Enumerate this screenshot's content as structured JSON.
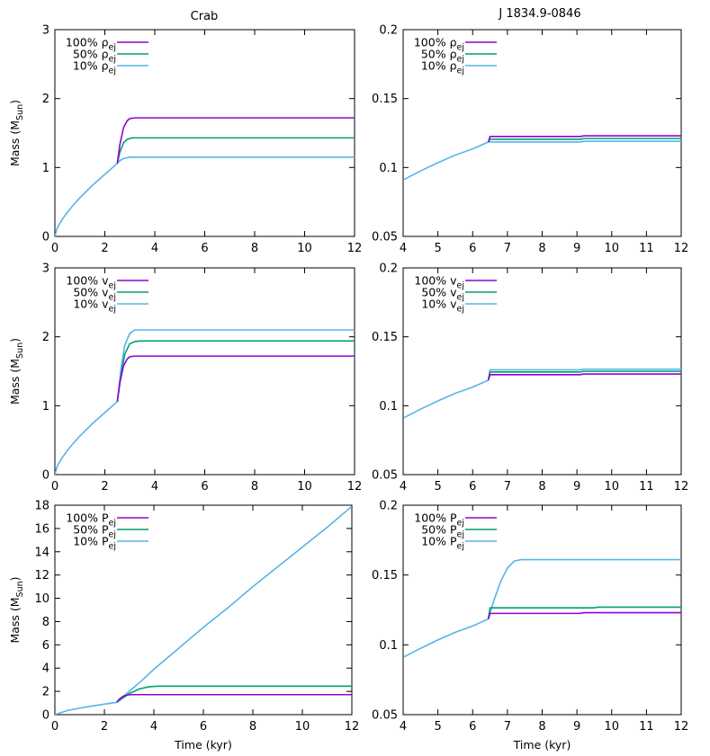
{
  "column_titles": [
    "Crab",
    "J 1834.9-0846"
  ],
  "chart_data": [
    {
      "type": "line",
      "title": "Crab",
      "xlabel": "",
      "ylabel": "Mass (M_Sun)",
      "xlim": [
        0,
        12
      ],
      "ylim": [
        0,
        3
      ],
      "xticks": [
        0,
        2,
        4,
        6,
        8,
        10,
        12
      ],
      "yticks": [
        0,
        1,
        2,
        3
      ],
      "legend": "top-left",
      "grid": false,
      "legend_labels": [
        {
          "prefix": "100% ",
          "sym": "ρ",
          "sub": "ej"
        },
        {
          "prefix": "50% ",
          "sym": "ρ",
          "sub": "ej"
        },
        {
          "prefix": "10% ",
          "sym": "ρ",
          "sub": "ej"
        }
      ],
      "series": [
        {
          "color": "#9400d3",
          "points": [
            [
              2.5,
              1.06
            ],
            [
              2.6,
              1.33
            ],
            [
              2.75,
              1.58
            ],
            [
              2.9,
              1.68
            ],
            [
              3.0,
              1.71
            ],
            [
              3.2,
              1.72
            ],
            [
              12,
              1.72
            ]
          ]
        },
        {
          "color": "#009e73",
          "points": [
            [
              2.5,
              1.06
            ],
            [
              2.6,
              1.22
            ],
            [
              2.75,
              1.36
            ],
            [
              2.9,
              1.41
            ],
            [
              3.1,
              1.43
            ],
            [
              12,
              1.43
            ]
          ]
        },
        {
          "color": "#56b4e9",
          "points": [
            [
              0,
              0
            ],
            [
              0.1,
              0.13
            ],
            [
              0.3,
              0.25
            ],
            [
              0.5,
              0.35
            ],
            [
              0.75,
              0.46
            ],
            [
              1.0,
              0.56
            ],
            [
              1.5,
              0.74
            ],
            [
              2.0,
              0.9
            ],
            [
              2.5,
              1.06
            ],
            [
              2.6,
              1.1
            ],
            [
              2.75,
              1.13
            ],
            [
              3.0,
              1.15
            ],
            [
              12,
              1.15
            ]
          ]
        }
      ]
    },
    {
      "type": "line",
      "title": "J 1834.9-0846",
      "xlabel": "",
      "ylabel": "",
      "xlim": [
        4,
        12
      ],
      "ylim": [
        0.05,
        0.2
      ],
      "xticks": [
        4,
        5,
        6,
        7,
        8,
        9,
        10,
        11,
        12
      ],
      "yticks": [
        0.05,
        0.1,
        0.15,
        0.2
      ],
      "legend": "top-left",
      "grid": false,
      "legend_labels": [
        {
          "prefix": "100% ",
          "sym": "ρ",
          "sub": "ej"
        },
        {
          "prefix": "50% ",
          "sym": "ρ",
          "sub": "ej"
        },
        {
          "prefix": "10% ",
          "sym": "ρ",
          "sub": "ej"
        }
      ],
      "series": [
        {
          "color": "#9400d3",
          "points": [
            [
              6.45,
              0.1185
            ],
            [
              6.5,
              0.1225
            ],
            [
              9.1,
              0.1225
            ],
            [
              9.2,
              0.123
            ],
            [
              12,
              0.123
            ]
          ]
        },
        {
          "color": "#009e73",
          "points": [
            [
              6.45,
              0.1185
            ],
            [
              6.5,
              0.1205
            ],
            [
              9.1,
              0.1205
            ],
            [
              9.2,
              0.121
            ],
            [
              12,
              0.121
            ]
          ]
        },
        {
          "color": "#56b4e9",
          "points": [
            [
              4,
              0.091
            ],
            [
              4.5,
              0.0975
            ],
            [
              5,
              0.1035
            ],
            [
              5.5,
              0.109
            ],
            [
              6,
              0.1135
            ],
            [
              6.45,
              0.1185
            ],
            [
              6.5,
              0.1185
            ],
            [
              9.1,
              0.1185
            ],
            [
              9.2,
              0.119
            ],
            [
              12,
              0.119
            ]
          ]
        }
      ]
    },
    {
      "type": "line",
      "title": "",
      "xlabel": "",
      "ylabel": "Mass (M_Sun)",
      "xlim": [
        0,
        12
      ],
      "ylim": [
        0,
        3
      ],
      "xticks": [
        0,
        2,
        4,
        6,
        8,
        10,
        12
      ],
      "yticks": [
        0,
        1,
        2,
        3
      ],
      "legend": "top-left",
      "grid": false,
      "legend_labels": [
        {
          "prefix": "100% ",
          "sym": "v",
          "sub": "ej"
        },
        {
          "prefix": "50% ",
          "sym": "v",
          "sub": "ej"
        },
        {
          "prefix": "10% ",
          "sym": "v",
          "sub": "ej"
        }
      ],
      "series": [
        {
          "color": "#9400d3",
          "points": [
            [
              2.5,
              1.06
            ],
            [
              2.6,
              1.33
            ],
            [
              2.75,
              1.58
            ],
            [
              2.9,
              1.68
            ],
            [
              3.0,
              1.71
            ],
            [
              3.2,
              1.72
            ],
            [
              12,
              1.72
            ]
          ]
        },
        {
          "color": "#009e73",
          "points": [
            [
              2.5,
              1.06
            ],
            [
              2.65,
              1.45
            ],
            [
              2.8,
              1.75
            ],
            [
              3.0,
              1.9
            ],
            [
              3.2,
              1.93
            ],
            [
              3.4,
              1.94
            ],
            [
              12,
              1.94
            ]
          ]
        },
        {
          "color": "#56b4e9",
          "points": [
            [
              0,
              0
            ],
            [
              0.1,
              0.13
            ],
            [
              0.3,
              0.25
            ],
            [
              0.5,
              0.35
            ],
            [
              0.75,
              0.46
            ],
            [
              1.0,
              0.56
            ],
            [
              1.5,
              0.74
            ],
            [
              2.0,
              0.9
            ],
            [
              2.5,
              1.06
            ],
            [
              2.65,
              1.55
            ],
            [
              2.8,
              1.88
            ],
            [
              3.0,
              2.05
            ],
            [
              3.2,
              2.1
            ],
            [
              12,
              2.1
            ]
          ]
        }
      ]
    },
    {
      "type": "line",
      "title": "",
      "xlabel": "",
      "ylabel": "",
      "xlim": [
        4,
        12
      ],
      "ylim": [
        0.05,
        0.2
      ],
      "xticks": [
        4,
        5,
        6,
        7,
        8,
        9,
        10,
        11,
        12
      ],
      "yticks": [
        0.05,
        0.1,
        0.15,
        0.2
      ],
      "legend": "top-left",
      "grid": false,
      "legend_labels": [
        {
          "prefix": "100% ",
          "sym": "v",
          "sub": "ej"
        },
        {
          "prefix": "50% ",
          "sym": "v",
          "sub": "ej"
        },
        {
          "prefix": "10% ",
          "sym": "v",
          "sub": "ej"
        }
      ],
      "series": [
        {
          "color": "#9400d3",
          "points": [
            [
              6.45,
              0.1185
            ],
            [
              6.5,
              0.1225
            ],
            [
              9.1,
              0.1225
            ],
            [
              9.2,
              0.123
            ],
            [
              12,
              0.123
            ]
          ]
        },
        {
          "color": "#009e73",
          "points": [
            [
              6.45,
              0.1185
            ],
            [
              6.5,
              0.1245
            ],
            [
              9.1,
              0.1245
            ],
            [
              9.2,
              0.125
            ],
            [
              12,
              0.125
            ]
          ]
        },
        {
          "color": "#56b4e9",
          "points": [
            [
              4,
              0.091
            ],
            [
              4.5,
              0.0975
            ],
            [
              5,
              0.1035
            ],
            [
              5.5,
              0.109
            ],
            [
              6,
              0.1135
            ],
            [
              6.45,
              0.1185
            ],
            [
              6.5,
              0.126
            ],
            [
              9.1,
              0.126
            ],
            [
              9.2,
              0.1265
            ],
            [
              12,
              0.1265
            ]
          ]
        }
      ]
    },
    {
      "type": "line",
      "title": "",
      "xlabel": "Time (kyr)",
      "ylabel": "Mass (M_Sun)",
      "xlim": [
        0,
        12
      ],
      "ylim": [
        0,
        18
      ],
      "xticks": [
        0,
        2,
        4,
        6,
        8,
        10,
        12
      ],
      "yticks": [
        0,
        2,
        4,
        6,
        8,
        10,
        12,
        14,
        16,
        18
      ],
      "legend": "top-left",
      "grid": false,
      "legend_labels": [
        {
          "prefix": "100% ",
          "sym": "P",
          "sub": "ej"
        },
        {
          "prefix": "50% ",
          "sym": "P",
          "sub": "ej"
        },
        {
          "prefix": "10% ",
          "sym": "P",
          "sub": "ej"
        }
      ],
      "series": [
        {
          "color": "#9400d3",
          "points": [
            [
              2.5,
              1.06
            ],
            [
              2.6,
              1.33
            ],
            [
              2.75,
              1.58
            ],
            [
              2.9,
              1.68
            ],
            [
              3.0,
              1.71
            ],
            [
              3.2,
              1.72
            ],
            [
              12,
              1.72
            ]
          ]
        },
        {
          "color": "#009e73",
          "points": [
            [
              2.5,
              1.06
            ],
            [
              3.0,
              1.8
            ],
            [
              3.4,
              2.2
            ],
            [
              3.8,
              2.4
            ],
            [
              4.2,
              2.45
            ],
            [
              12,
              2.45
            ]
          ]
        },
        {
          "color": "#56b4e9",
          "points": [
            [
              0,
              0
            ],
            [
              0.5,
              0.35
            ],
            [
              1.0,
              0.56
            ],
            [
              1.5,
              0.74
            ],
            [
              2.0,
              0.9
            ],
            [
              2.5,
              1.06
            ],
            [
              3.0,
              2.0
            ],
            [
              3.5,
              2.9
            ],
            [
              4.0,
              3.9
            ],
            [
              5,
              5.7
            ],
            [
              6,
              7.5
            ],
            [
              7,
              9.2
            ],
            [
              8,
              11.0
            ],
            [
              9,
              12.7
            ],
            [
              10,
              14.4
            ],
            [
              11,
              16.1
            ],
            [
              12,
              17.9
            ]
          ]
        }
      ]
    },
    {
      "type": "line",
      "title": "",
      "xlabel": "Time (kyr)",
      "ylabel": "",
      "xlim": [
        4,
        12
      ],
      "ylim": [
        0.05,
        0.2
      ],
      "xticks": [
        4,
        5,
        6,
        7,
        8,
        9,
        10,
        11,
        12
      ],
      "yticks": [
        0.05,
        0.1,
        0.15,
        0.2
      ],
      "legend": "top-left",
      "grid": false,
      "legend_labels": [
        {
          "prefix": "100% ",
          "sym": "P",
          "sub": "ej"
        },
        {
          "prefix": "50% ",
          "sym": "P",
          "sub": "ej"
        },
        {
          "prefix": "10% ",
          "sym": "P",
          "sub": "ej"
        }
      ],
      "series": [
        {
          "color": "#9400d3",
          "points": [
            [
              6.45,
              0.1185
            ],
            [
              6.5,
              0.1225
            ],
            [
              9.1,
              0.1225
            ],
            [
              9.2,
              0.123
            ],
            [
              12,
              0.123
            ]
          ]
        },
        {
          "color": "#009e73",
          "points": [
            [
              6.45,
              0.1185
            ],
            [
              6.5,
              0.1265
            ],
            [
              9.5,
              0.1265
            ],
            [
              9.6,
              0.127
            ],
            [
              12,
              0.127
            ]
          ]
        },
        {
          "color": "#56b4e9",
          "points": [
            [
              4,
              0.091
            ],
            [
              4.5,
              0.0975
            ],
            [
              5,
              0.1035
            ],
            [
              5.5,
              0.109
            ],
            [
              6,
              0.1135
            ],
            [
              6.45,
              0.1185
            ],
            [
              6.6,
              0.131
            ],
            [
              6.8,
              0.145
            ],
            [
              7.0,
              0.155
            ],
            [
              7.2,
              0.16
            ],
            [
              7.4,
              0.161
            ],
            [
              12,
              0.161
            ]
          ]
        }
      ]
    }
  ]
}
